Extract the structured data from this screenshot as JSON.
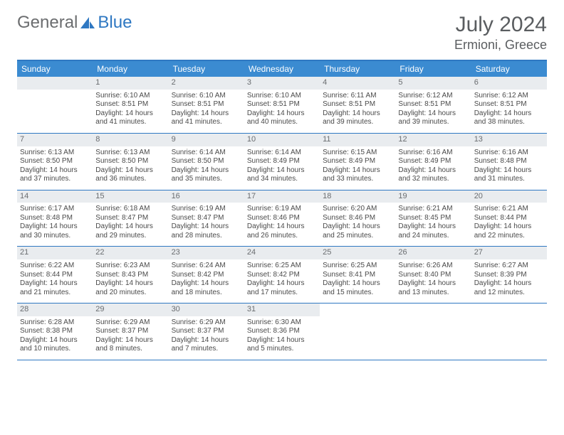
{
  "brand": {
    "part1": "General",
    "part2": "Blue"
  },
  "title": {
    "month": "July 2024",
    "location": "Ermioni, Greece"
  },
  "colors": {
    "header_bg": "#3b8bd1",
    "header_border": "#2f78c2",
    "daynum_bg": "#e9ecef",
    "text": "#4a4a4a",
    "muted": "#6a6d70"
  },
  "weekdays": [
    "Sunday",
    "Monday",
    "Tuesday",
    "Wednesday",
    "Thursday",
    "Friday",
    "Saturday"
  ],
  "leading_blanks": 0,
  "days": [
    {
      "n": "",
      "sunrise": "",
      "sunset": "",
      "day1": "",
      "day2": ""
    },
    {
      "n": "1",
      "sunrise": "Sunrise: 6:10 AM",
      "sunset": "Sunset: 8:51 PM",
      "day1": "Daylight: 14 hours",
      "day2": "and 41 minutes."
    },
    {
      "n": "2",
      "sunrise": "Sunrise: 6:10 AM",
      "sunset": "Sunset: 8:51 PM",
      "day1": "Daylight: 14 hours",
      "day2": "and 41 minutes."
    },
    {
      "n": "3",
      "sunrise": "Sunrise: 6:10 AM",
      "sunset": "Sunset: 8:51 PM",
      "day1": "Daylight: 14 hours",
      "day2": "and 40 minutes."
    },
    {
      "n": "4",
      "sunrise": "Sunrise: 6:11 AM",
      "sunset": "Sunset: 8:51 PM",
      "day1": "Daylight: 14 hours",
      "day2": "and 39 minutes."
    },
    {
      "n": "5",
      "sunrise": "Sunrise: 6:12 AM",
      "sunset": "Sunset: 8:51 PM",
      "day1": "Daylight: 14 hours",
      "day2": "and 39 minutes."
    },
    {
      "n": "6",
      "sunrise": "Sunrise: 6:12 AM",
      "sunset": "Sunset: 8:51 PM",
      "day1": "Daylight: 14 hours",
      "day2": "and 38 minutes."
    },
    {
      "n": "7",
      "sunrise": "Sunrise: 6:13 AM",
      "sunset": "Sunset: 8:50 PM",
      "day1": "Daylight: 14 hours",
      "day2": "and 37 minutes."
    },
    {
      "n": "8",
      "sunrise": "Sunrise: 6:13 AM",
      "sunset": "Sunset: 8:50 PM",
      "day1": "Daylight: 14 hours",
      "day2": "and 36 minutes."
    },
    {
      "n": "9",
      "sunrise": "Sunrise: 6:14 AM",
      "sunset": "Sunset: 8:50 PM",
      "day1": "Daylight: 14 hours",
      "day2": "and 35 minutes."
    },
    {
      "n": "10",
      "sunrise": "Sunrise: 6:14 AM",
      "sunset": "Sunset: 8:49 PM",
      "day1": "Daylight: 14 hours",
      "day2": "and 34 minutes."
    },
    {
      "n": "11",
      "sunrise": "Sunrise: 6:15 AM",
      "sunset": "Sunset: 8:49 PM",
      "day1": "Daylight: 14 hours",
      "day2": "and 33 minutes."
    },
    {
      "n": "12",
      "sunrise": "Sunrise: 6:16 AM",
      "sunset": "Sunset: 8:49 PM",
      "day1": "Daylight: 14 hours",
      "day2": "and 32 minutes."
    },
    {
      "n": "13",
      "sunrise": "Sunrise: 6:16 AM",
      "sunset": "Sunset: 8:48 PM",
      "day1": "Daylight: 14 hours",
      "day2": "and 31 minutes."
    },
    {
      "n": "14",
      "sunrise": "Sunrise: 6:17 AM",
      "sunset": "Sunset: 8:48 PM",
      "day1": "Daylight: 14 hours",
      "day2": "and 30 minutes."
    },
    {
      "n": "15",
      "sunrise": "Sunrise: 6:18 AM",
      "sunset": "Sunset: 8:47 PM",
      "day1": "Daylight: 14 hours",
      "day2": "and 29 minutes."
    },
    {
      "n": "16",
      "sunrise": "Sunrise: 6:19 AM",
      "sunset": "Sunset: 8:47 PM",
      "day1": "Daylight: 14 hours",
      "day2": "and 28 minutes."
    },
    {
      "n": "17",
      "sunrise": "Sunrise: 6:19 AM",
      "sunset": "Sunset: 8:46 PM",
      "day1": "Daylight: 14 hours",
      "day2": "and 26 minutes."
    },
    {
      "n": "18",
      "sunrise": "Sunrise: 6:20 AM",
      "sunset": "Sunset: 8:46 PM",
      "day1": "Daylight: 14 hours",
      "day2": "and 25 minutes."
    },
    {
      "n": "19",
      "sunrise": "Sunrise: 6:21 AM",
      "sunset": "Sunset: 8:45 PM",
      "day1": "Daylight: 14 hours",
      "day2": "and 24 minutes."
    },
    {
      "n": "20",
      "sunrise": "Sunrise: 6:21 AM",
      "sunset": "Sunset: 8:44 PM",
      "day1": "Daylight: 14 hours",
      "day2": "and 22 minutes."
    },
    {
      "n": "21",
      "sunrise": "Sunrise: 6:22 AM",
      "sunset": "Sunset: 8:44 PM",
      "day1": "Daylight: 14 hours",
      "day2": "and 21 minutes."
    },
    {
      "n": "22",
      "sunrise": "Sunrise: 6:23 AM",
      "sunset": "Sunset: 8:43 PM",
      "day1": "Daylight: 14 hours",
      "day2": "and 20 minutes."
    },
    {
      "n": "23",
      "sunrise": "Sunrise: 6:24 AM",
      "sunset": "Sunset: 8:42 PM",
      "day1": "Daylight: 14 hours",
      "day2": "and 18 minutes."
    },
    {
      "n": "24",
      "sunrise": "Sunrise: 6:25 AM",
      "sunset": "Sunset: 8:42 PM",
      "day1": "Daylight: 14 hours",
      "day2": "and 17 minutes."
    },
    {
      "n": "25",
      "sunrise": "Sunrise: 6:25 AM",
      "sunset": "Sunset: 8:41 PM",
      "day1": "Daylight: 14 hours",
      "day2": "and 15 minutes."
    },
    {
      "n": "26",
      "sunrise": "Sunrise: 6:26 AM",
      "sunset": "Sunset: 8:40 PM",
      "day1": "Daylight: 14 hours",
      "day2": "and 13 minutes."
    },
    {
      "n": "27",
      "sunrise": "Sunrise: 6:27 AM",
      "sunset": "Sunset: 8:39 PM",
      "day1": "Daylight: 14 hours",
      "day2": "and 12 minutes."
    },
    {
      "n": "28",
      "sunrise": "Sunrise: 6:28 AM",
      "sunset": "Sunset: 8:38 PM",
      "day1": "Daylight: 14 hours",
      "day2": "and 10 minutes."
    },
    {
      "n": "29",
      "sunrise": "Sunrise: 6:29 AM",
      "sunset": "Sunset: 8:37 PM",
      "day1": "Daylight: 14 hours",
      "day2": "and 8 minutes."
    },
    {
      "n": "30",
      "sunrise": "Sunrise: 6:29 AM",
      "sunset": "Sunset: 8:37 PM",
      "day1": "Daylight: 14 hours",
      "day2": "and 7 minutes."
    },
    {
      "n": "31",
      "sunrise": "Sunrise: 6:30 AM",
      "sunset": "Sunset: 8:36 PM",
      "day1": "Daylight: 14 hours",
      "day2": "and 5 minutes."
    }
  ]
}
